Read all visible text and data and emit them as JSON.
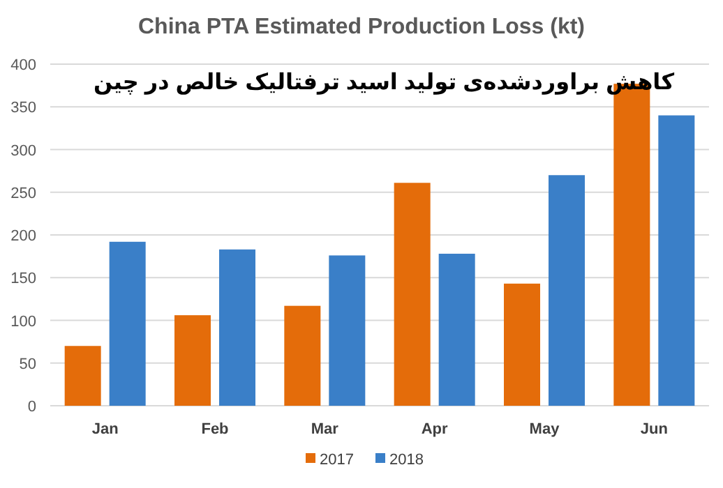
{
  "chart_data": {
    "type": "bar",
    "title": "China PTA Estimated Production Loss (kt)",
    "subtitle": "کاهش براوردشده‌ی تولید اسید ترفتالیک خالص در چین",
    "categories": [
      "Jan",
      "Feb",
      "Mar",
      "Apr",
      "May",
      "Jun"
    ],
    "series": [
      {
        "name": "2017",
        "color": "#e46c0a",
        "values": [
          70,
          106,
          117,
          261,
          143,
          377
        ]
      },
      {
        "name": "2018",
        "color": "#3a7fc8",
        "values": [
          192,
          183,
          176,
          178,
          270,
          340
        ]
      }
    ],
    "ylim": [
      0,
      400
    ],
    "yticks": [
      0,
      50,
      100,
      150,
      200,
      250,
      300,
      350,
      400
    ],
    "grid": "y",
    "legend": "bottom"
  }
}
